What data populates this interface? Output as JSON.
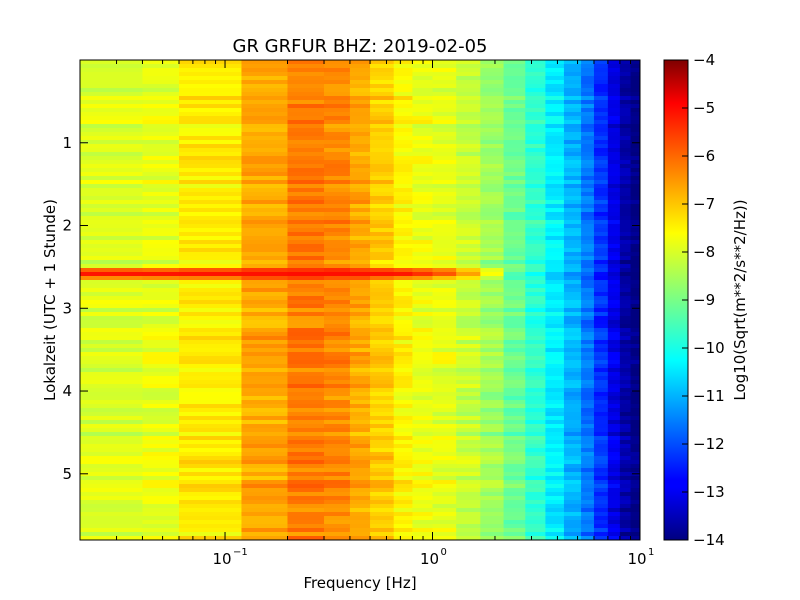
{
  "chart_data": {
    "type": "heatmap",
    "title": "GR GRFUR BHZ: 2019-02-05",
    "xlabel": "Frequency [Hz]",
    "ylabel": "Lokalzeit (UTC + 1 Stunde)",
    "x_scale": "log",
    "xlim": [
      0.02,
      10
    ],
    "x_ticks": [
      {
        "value": 0.1,
        "base": "10",
        "exp": "−1"
      },
      {
        "value": 1,
        "base": "10",
        "exp": "0"
      },
      {
        "value": 10,
        "base": "10",
        "exp": "1"
      }
    ],
    "ylim": [
      0,
      5.8
    ],
    "y_inverted": true,
    "y_ticks": [
      {
        "value": 1,
        "label": "1"
      },
      {
        "value": 2,
        "label": "2"
      },
      {
        "value": 3,
        "label": "3"
      },
      {
        "value": 4,
        "label": "4"
      },
      {
        "value": 5,
        "label": "5"
      }
    ],
    "colorbar": {
      "label": "Log10(Sqrt(m**2/s**2/Hz))",
      "colormap": "jet",
      "range": [
        -14,
        -4
      ],
      "ticks": [
        {
          "value": -4,
          "label": "−4"
        },
        {
          "value": -5,
          "label": "−5"
        },
        {
          "value": -6,
          "label": "−6"
        },
        {
          "value": -7,
          "label": "−7"
        },
        {
          "value": -8,
          "label": "−8"
        },
        {
          "value": -9,
          "label": "−9"
        },
        {
          "value": -10,
          "label": "−10"
        },
        {
          "value": -11,
          "label": "−11"
        },
        {
          "value": -12,
          "label": "−12"
        },
        {
          "value": -13,
          "label": "−13"
        },
        {
          "value": -14,
          "label": "−14"
        }
      ]
    },
    "frequency_bins": [
      0.02,
      0.04,
      0.06,
      0.12,
      0.2,
      0.3,
      0.4,
      0.5,
      0.65,
      0.8,
      1.0,
      1.3,
      1.7,
      2.2,
      2.8,
      3.5,
      4.3,
      5.2,
      6.0,
      7.0,
      8.0,
      9.0,
      10.0
    ],
    "mean_spectrum": [
      -8.1,
      -8.0,
      -7.6,
      -6.9,
      -6.5,
      -6.6,
      -6.9,
      -7.3,
      -7.7,
      -7.9,
      -8.0,
      -8.3,
      -8.7,
      -9.2,
      -9.8,
      -10.4,
      -11.0,
      -11.6,
      -12.3,
      -13.0,
      -13.6,
      -14.0
    ],
    "event": {
      "time": 2.58,
      "duration": 0.12,
      "peak_value": -5.3
    }
  }
}
